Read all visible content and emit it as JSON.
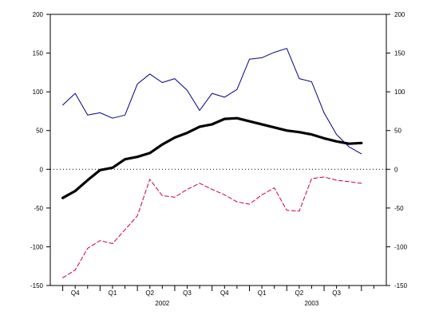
{
  "chart_data": {
    "type": "line",
    "title": "",
    "xlabel": "",
    "ylabel": "",
    "ylim": [
      -150,
      200
    ],
    "y_ticks": [
      200,
      150,
      100,
      50,
      0,
      -50,
      -100,
      -150
    ],
    "y_tick_labels": [
      "200",
      "150",
      "100",
      "50",
      "0",
      "-50",
      "-100",
      "-150"
    ],
    "x_range": [
      "2001-09",
      "2003-12"
    ],
    "quarter_ticks": [
      {
        "label": "Q4",
        "month": "2001-11"
      },
      {
        "label": "Q1",
        "month": "2002-02"
      },
      {
        "label": "Q2",
        "month": "2002-05"
      },
      {
        "label": "Q3",
        "month": "2002-08"
      },
      {
        "label": "Q4",
        "month": "2002-11"
      },
      {
        "label": "Q1",
        "month": "2003-02"
      },
      {
        "label": "Q2",
        "month": "2003-05"
      },
      {
        "label": "Q3",
        "month": "2003-08"
      }
    ],
    "year_labels": [
      {
        "label": "2002",
        "month": "2002-06"
      },
      {
        "label": "2003",
        "month": "2003-06"
      }
    ],
    "zero_line": {
      "value": 0,
      "style": "dotted"
    },
    "grid": false,
    "legend": "none",
    "x": [
      "2001-10",
      "2001-11",
      "2001-12",
      "2002-01",
      "2002-02",
      "2002-03",
      "2002-04",
      "2002-05",
      "2002-06",
      "2002-07",
      "2002-08",
      "2002-09",
      "2002-10",
      "2002-11",
      "2002-12",
      "2003-01",
      "2003-02",
      "2003-03",
      "2003-04",
      "2003-05",
      "2003-06",
      "2003-07",
      "2003-08",
      "2003-09",
      "2003-10"
    ],
    "series": [
      {
        "color": "#000080",
        "style": "thin-solid",
        "values": [
          83,
          98,
          70,
          73,
          66,
          70,
          110,
          123,
          112,
          117,
          102,
          76,
          98,
          93,
          103,
          142,
          144,
          151,
          156,
          117,
          113,
          73,
          45,
          29,
          20
        ]
      },
      {
        "color": "#000000",
        "style": "thick-solid",
        "values": [
          -37,
          -28,
          -14,
          -1,
          2,
          13,
          16,
          21,
          32,
          41,
          47,
          55,
          58,
          65,
          66,
          62,
          58,
          54,
          50,
          48,
          45,
          40,
          36,
          33,
          34
        ]
      },
      {
        "color": "#cc0033",
        "style": "dashed",
        "values": [
          -140,
          -130,
          -102,
          -92,
          -96,
          -78,
          -60,
          -13,
          -34,
          -36,
          -26,
          -18,
          -26,
          -33,
          -42,
          -45,
          -33,
          -24,
          -53,
          -54,
          -12,
          -10,
          -14,
          -16,
          -18
        ]
      }
    ]
  }
}
